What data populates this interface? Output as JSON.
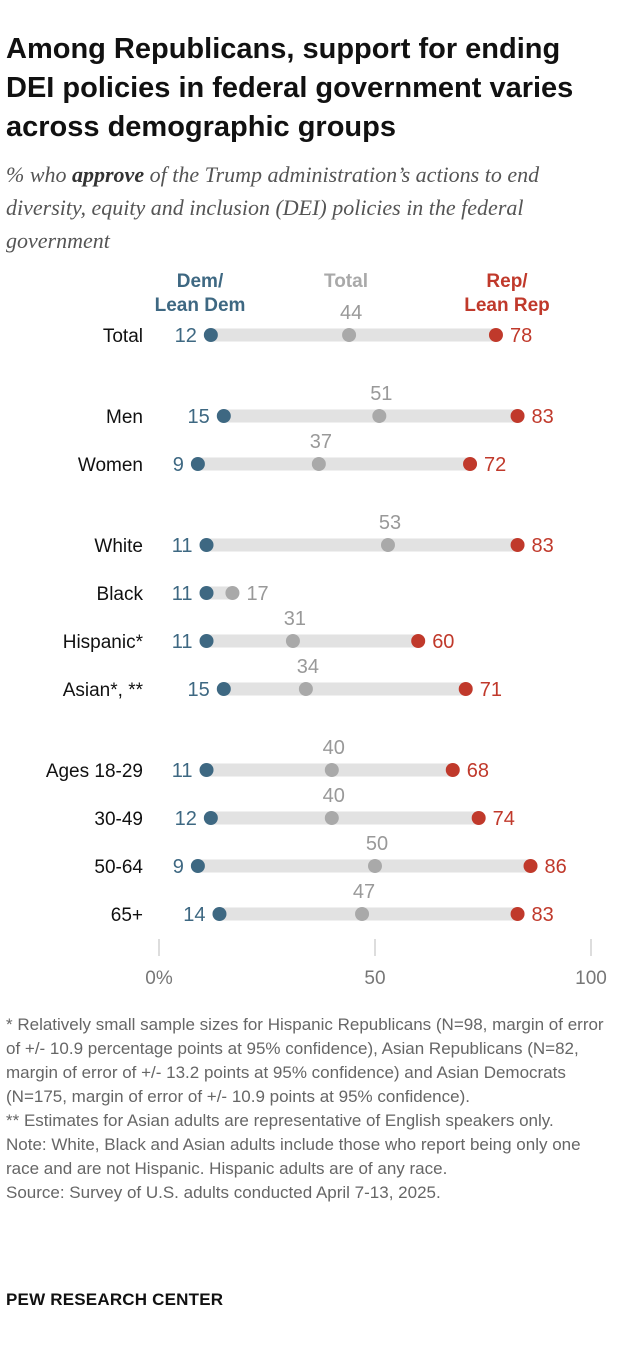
{
  "title": "Among Republicans, support for ending DEI policies in federal government varies across demographic groups",
  "subtitle": {
    "prefix": "% who ",
    "bold": "approve",
    "suffix": " of the Trump administration’s actions to end diversity, equity and inclusion (DEI) policies in the federal government"
  },
  "chart_data": {
    "type": "dot",
    "title": "",
    "xlim": [
      0,
      100
    ],
    "x_ticks": [
      {
        "value": 0,
        "label": "0%"
      },
      {
        "value": 50,
        "label": "50"
      },
      {
        "value": 100,
        "label": "100"
      }
    ],
    "series": [
      {
        "name": "Dem/\nLean Dem",
        "key": "dem",
        "color": "#3e6882"
      },
      {
        "name": "Total",
        "key": "total",
        "color": "#a9a9a9"
      },
      {
        "name": "Rep/\nLean Rep",
        "key": "rep",
        "color": "#c0392b"
      }
    ],
    "rows": [
      {
        "label": "Total",
        "dem": 12,
        "total": 44,
        "rep": 78
      },
      {
        "label": "Men",
        "dem": 15,
        "total": 51,
        "rep": 83
      },
      {
        "label": "Women",
        "dem": 9,
        "total": 37,
        "rep": 72
      },
      {
        "label": "White",
        "dem": 11,
        "total": 53,
        "rep": 83
      },
      {
        "label": "Black",
        "dem": 11,
        "total": 17,
        "rep": null
      },
      {
        "label": "Hispanic*",
        "dem": 11,
        "total": 31,
        "rep": 60
      },
      {
        "label": "Asian*, **",
        "dem": 15,
        "total": 34,
        "rep": 71
      },
      {
        "label": "Ages 18-29",
        "dem": 11,
        "total": 40,
        "rep": 68
      },
      {
        "label": "30-49",
        "dem": 12,
        "total": 40,
        "rep": 74
      },
      {
        "label": "50-64",
        "dem": 9,
        "total": 50,
        "rep": 86
      },
      {
        "label": "65+",
        "dem": 14,
        "total": 47,
        "rep": 83
      }
    ]
  },
  "notes": {
    "n1": "* Relatively small sample sizes for Hispanic Republicans (N=98, margin of error of +/- 10.9 percentage points at 95% confidence), Asian Republicans (N=82, margin of error of +/- 13.2 points at 95% confidence) and Asian Democrats (N=175, margin of error of +/- 10.9 points at 95% confidence).",
    "n2": "** Estimates for Asian adults are representative of English speakers only.",
    "n3": "Note: White, Black and Asian adults include those who report being only one race and are not Hispanic. Hispanic adults are of any race.",
    "n4": "Source: Survey of U.S. adults conducted April 7-13, 2025."
  },
  "brand": "PEW RESEARCH CENTER"
}
